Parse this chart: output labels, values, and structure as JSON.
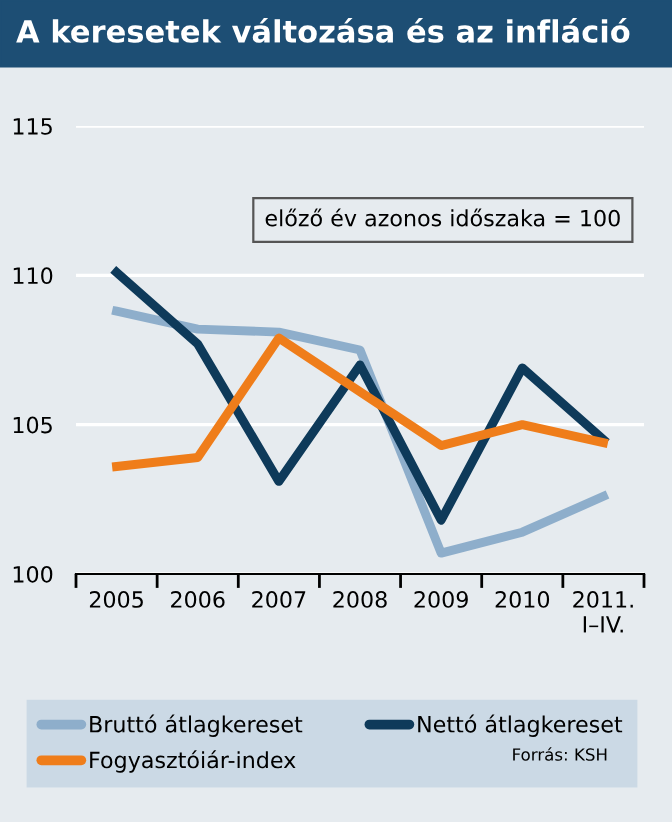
{
  "chart_data": {
    "type": "line",
    "title": "A keresetek változása és az infláció",
    "categories": [
      "2005",
      "2006",
      "2007",
      "2008",
      "2009",
      "2010",
      "2011.\nI–IV."
    ],
    "series": [
      {
        "name": "Bruttó átlagkereset",
        "color": "#8eaecb",
        "values": [
          108.8,
          108.2,
          108.1,
          107.5,
          100.7,
          101.4,
          102.6
        ]
      },
      {
        "name": "Nettó átlagkereset",
        "color": "#0e3a5a",
        "values": [
          110.1,
          107.7,
          103.1,
          107.0,
          101.8,
          106.9,
          104.5
        ]
      },
      {
        "name": "Fogyasztóiár-index",
        "color": "#ef7d1a",
        "values": [
          103.6,
          103.9,
          107.9,
          106.1,
          104.3,
          105.0,
          104.4
        ]
      }
    ],
    "ylim": [
      100,
      115
    ],
    "yticks": [
      100,
      105,
      110,
      115
    ],
    "grid": "y",
    "legend": "bottom",
    "marker": "none",
    "line_style": "solid",
    "annotations": [
      "előző év azonos időszaka = 100",
      "Forrás: KSH"
    ]
  }
}
